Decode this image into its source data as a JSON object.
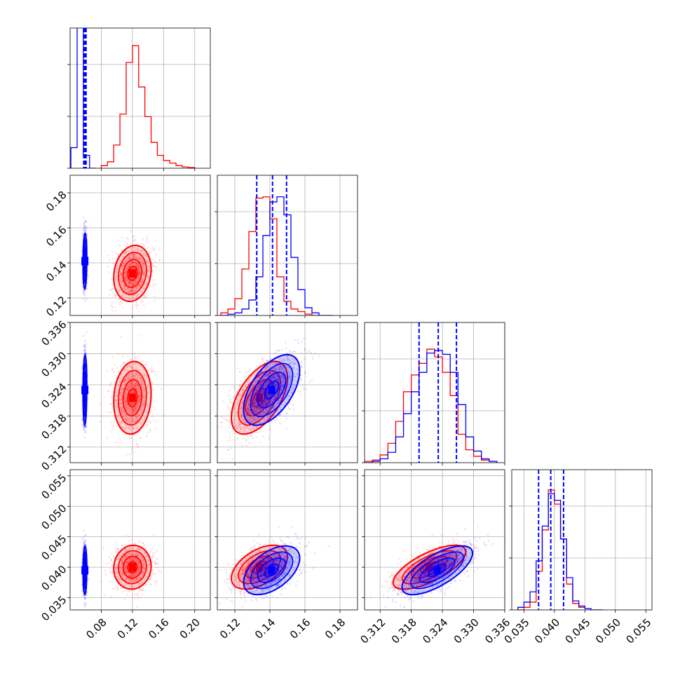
{
  "chart_data": {
    "type": "corner",
    "parameters": 4,
    "grid": true,
    "colors": {
      "red": "#ff0000",
      "blue": "#0000ff"
    },
    "axes": [
      {
        "range": [
          0.04,
          0.22
        ],
        "ticks": [
          0.08,
          0.12,
          0.16,
          0.2
        ],
        "labels": [
          "0.08",
          "0.12",
          "0.16",
          "0.20"
        ]
      },
      {
        "range": [
          0.11,
          0.19
        ],
        "ticks": [
          0.12,
          0.14,
          0.16,
          0.18
        ],
        "labels": [
          "0.12",
          "0.14",
          "0.16",
          "0.18"
        ]
      },
      {
        "range": [
          0.309,
          0.336
        ],
        "ticks": [
          0.312,
          0.318,
          0.324,
          0.33,
          0.336
        ],
        "labels": [
          "0.312",
          "0.318",
          "0.324",
          "0.330",
          "0.336"
        ]
      },
      {
        "range": [
          0.033,
          0.056
        ],
        "ticks": [
          0.035,
          0.04,
          0.045,
          0.05,
          0.055
        ],
        "labels": [
          "0.035",
          "0.040",
          "0.045",
          "0.050",
          "0.055"
        ]
      }
    ],
    "series": [
      {
        "color": "red",
        "mean": [
          0.12,
          0.134,
          0.3215,
          0.04
        ],
        "std": [
          0.012,
          0.008,
          0.0035,
          0.0018
        ]
      },
      {
        "color": "blue",
        "mean": [
          0.059,
          0.141,
          0.323,
          0.0395
        ],
        "std": [
          0.0012,
          0.008,
          0.0034,
          0.002
        ]
      }
    ],
    "quantile_lines": [
      {
        "axis": 0,
        "values": [
          0.0575,
          0.059,
          0.0605
        ]
      },
      {
        "axis": 1,
        "values": [
          0.1325,
          0.1415,
          0.1495
        ]
      },
      {
        "axis": 2,
        "values": [
          0.3195,
          0.3232,
          0.3267
        ]
      },
      {
        "axis": 3,
        "values": [
          0.0374,
          0.0394,
          0.0415
        ]
      }
    ],
    "histograms": [
      {
        "axis": 0,
        "series": [
          {
            "color": "red",
            "bins": [
              0.08,
              0.088,
              0.096,
              0.104,
              0.112,
              0.12,
              0.128,
              0.136,
              0.144,
              0.152,
              0.16,
              0.168,
              0.176,
              0.184,
              0.192
            ],
            "counts": [
              0.02,
              0.05,
              0.18,
              0.42,
              0.82,
              0.95,
              0.63,
              0.4,
              0.2,
              0.1,
              0.06,
              0.04,
              0.02,
              0.01,
              0.005
            ]
          },
          {
            "color": "blue",
            "bins": [
              0.041,
              0.049,
              0.057,
              0.065
            ],
            "counts": [
              0.16,
              1.4,
              0.1,
              0.0
            ]
          }
        ]
      },
      {
        "axis": 1,
        "series": [
          {
            "color": "red",
            "bins": [
              0.112,
              0.116,
              0.12,
              0.124,
              0.128,
              0.132,
              0.136,
              0.14,
              0.144,
              0.148,
              0.152,
              0.156,
              0.16,
              0.164
            ],
            "counts": [
              0.02,
              0.05,
              0.13,
              0.36,
              0.65,
              0.91,
              0.92,
              0.75,
              0.3,
              0.11,
              0.05,
              0.03,
              0.01,
              0.0
            ]
          },
          {
            "color": "blue",
            "bins": [
              0.112,
              0.116,
              0.12,
              0.124,
              0.128,
              0.132,
              0.136,
              0.14,
              0.144,
              0.148,
              0.152,
              0.156,
              0.16,
              0.164,
              0.168,
              0.172
            ],
            "counts": [
              0.0,
              0.01,
              0.02,
              0.05,
              0.12,
              0.3,
              0.62,
              0.88,
              0.92,
              0.78,
              0.45,
              0.2,
              0.06,
              0.02,
              0.0,
              0.0
            ]
          }
        ]
      },
      {
        "axis": 2,
        "series": [
          {
            "color": "red",
            "bins": [
              0.309,
              0.3105,
              0.312,
              0.3135,
              0.315,
              0.3165,
              0.318,
              0.3195,
              0.321,
              0.3225,
              0.324,
              0.3255,
              0.327,
              0.3285,
              0.33,
              0.3315,
              0.333
            ],
            "counts": [
              0.01,
              0.02,
              0.06,
              0.15,
              0.32,
              0.55,
              0.68,
              0.77,
              0.88,
              0.82,
              0.7,
              0.52,
              0.22,
              0.1,
              0.05,
              0.02,
              0.01
            ]
          },
          {
            "color": "blue",
            "bins": [
              0.309,
              0.3105,
              0.312,
              0.3135,
              0.315,
              0.3165,
              0.318,
              0.3195,
              0.321,
              0.3225,
              0.324,
              0.3255,
              0.327,
              0.3285,
              0.33,
              0.3315,
              0.333
            ],
            "counts": [
              0.0,
              0.01,
              0.03,
              0.08,
              0.2,
              0.38,
              0.55,
              0.7,
              0.85,
              0.87,
              0.84,
              0.7,
              0.45,
              0.2,
              0.09,
              0.03,
              0.01
            ]
          }
        ]
      },
      {
        "axis": 3,
        "series": [
          {
            "color": "red",
            "bins": [
              0.034,
              0.035,
              0.036,
              0.037,
              0.038,
              0.039,
              0.04,
              0.041,
              0.042,
              0.043,
              0.044,
              0.045,
              0.046,
              0.047
            ],
            "counts": [
              0.0,
              0.02,
              0.06,
              0.3,
              0.62,
              0.93,
              0.82,
              0.55,
              0.2,
              0.05,
              0.02,
              0.01,
              0.0,
              0.0
            ]
          },
          {
            "color": "blue",
            "bins": [
              0.034,
              0.035,
              0.036,
              0.037,
              0.038,
              0.039,
              0.04,
              0.041,
              0.042,
              0.043,
              0.044,
              0.045,
              0.046,
              0.047
            ],
            "counts": [
              0.02,
              0.06,
              0.14,
              0.38,
              0.65,
              0.9,
              0.85,
              0.55,
              0.25,
              0.07,
              0.03,
              0.01,
              0.0,
              0.0
            ]
          }
        ]
      }
    ]
  }
}
